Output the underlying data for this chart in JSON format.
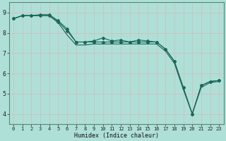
{
  "xlabel": "Humidex (Indice chaleur)",
  "bg_color": "#aee0d8",
  "grid_color": "#c8e8e0",
  "line_color": "#1a6858",
  "marker_color": "#1a6858",
  "xlim": [
    -0.5,
    23.5
  ],
  "ylim": [
    3.5,
    9.5
  ],
  "yticks": [
    4,
    5,
    6,
    7,
    8,
    9
  ],
  "xticks": [
    0,
    1,
    2,
    3,
    4,
    5,
    6,
    7,
    8,
    9,
    10,
    11,
    12,
    13,
    14,
    15,
    16,
    17,
    18,
    19,
    20,
    21,
    22,
    23
  ],
  "line1_x": [
    0,
    1,
    2,
    3,
    4,
    5,
    6,
    7,
    8,
    9,
    10,
    11,
    12,
    13,
    14,
    15,
    16,
    17,
    18,
    19,
    20,
    21,
    22,
    23
  ],
  "line1_y": [
    8.7,
    8.85,
    8.85,
    8.85,
    8.85,
    8.55,
    8.1,
    7.55,
    7.55,
    7.6,
    7.75,
    7.6,
    7.65,
    7.55,
    7.65,
    7.6,
    7.55,
    7.2,
    6.6,
    5.3,
    4.0,
    5.4,
    5.6,
    5.65
  ],
  "line2_x": [
    0,
    1,
    2,
    3,
    4,
    5,
    6,
    7,
    8,
    9,
    10,
    11,
    12,
    13,
    14,
    15,
    16,
    17,
    18,
    19,
    20,
    21,
    22,
    23
  ],
  "line2_y": [
    8.7,
    8.85,
    8.85,
    8.9,
    8.9,
    8.6,
    8.2,
    7.55,
    7.55,
    7.55,
    7.55,
    7.55,
    7.55,
    7.55,
    7.55,
    7.55,
    7.55,
    7.2,
    6.6,
    5.3,
    4.0,
    5.4,
    5.6,
    5.65
  ],
  "line3_x": [
    0,
    1,
    2,
    3,
    4,
    5,
    6,
    7,
    8,
    9,
    10,
    11,
    12,
    13,
    14,
    15,
    16,
    17,
    18,
    19,
    20,
    21,
    22,
    23
  ],
  "line3_y": [
    8.7,
    8.85,
    8.85,
    8.85,
    8.85,
    8.5,
    7.9,
    7.4,
    7.4,
    7.45,
    7.45,
    7.45,
    7.45,
    7.45,
    7.45,
    7.45,
    7.45,
    7.1,
    6.5,
    5.2,
    4.0,
    5.3,
    5.55,
    5.6
  ]
}
